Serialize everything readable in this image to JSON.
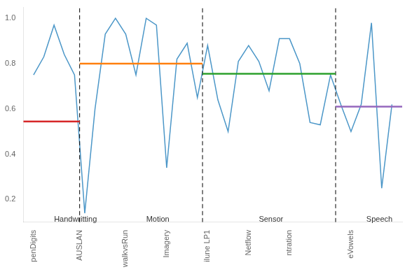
{
  "chart_data": {
    "type": "line",
    "x": [
      0,
      1,
      2,
      3,
      4,
      5,
      6,
      7,
      8,
      9,
      10,
      11,
      12,
      13,
      14,
      15,
      16,
      17,
      18,
      19,
      20,
      21,
      22,
      23,
      24,
      25,
      26,
      27,
      28,
      29,
      30,
      31,
      32,
      33,
      34,
      35
    ],
    "values": [
      0.75,
      0.83,
      0.97,
      0.84,
      0.75,
      0.14,
      0.6,
      0.93,
      1.0,
      0.93,
      0.75,
      1.0,
      0.97,
      0.34,
      0.82,
      0.89,
      0.65,
      0.88,
      0.64,
      0.5,
      0.81,
      0.88,
      0.81,
      0.68,
      0.91,
      0.91,
      0.8,
      0.54,
      0.53,
      0.75,
      0.62,
      0.5,
      0.62,
      0.98,
      0.25,
      0.62
    ],
    "color": "#4C97C8",
    "xlim": [
      -1,
      36
    ],
    "xticks": [
      {
        "value": 0,
        "label": "penDigits"
      },
      {
        "value": 4.5,
        "label": "AUSLAN"
      },
      {
        "value": 9,
        "label": "walkvsRun"
      },
      {
        "value": 13,
        "label": "Imagery"
      },
      {
        "value": 17,
        "label": "ilune LP1"
      },
      {
        "value": 21,
        "label": "Netflow"
      },
      {
        "value": 25,
        "label": "ntration"
      },
      {
        "value": 31,
        "label": "eVowels"
      }
    ],
    "ylim": [
      0.1,
      1.05
    ],
    "yticks": [
      0.2,
      0.4,
      0.6,
      0.8,
      {
        "value": 1.0,
        "label": "1.0"
      }
    ],
    "vlines": [
      {
        "x": 4.5,
        "color": "black",
        "line_style": "dashed"
      },
      {
        "x": 16.5,
        "color": "black",
        "line_style": "dashed"
      },
      {
        "x": 29.5,
        "color": "black",
        "line_style": "dashed"
      }
    ],
    "mean_lines": [
      {
        "xmin": -1,
        "xmax": 4.5,
        "y": 0.545,
        "color": "#d62728"
      },
      {
        "xmin": 4.5,
        "xmax": 16.5,
        "y": 0.8,
        "color": "#ff7f0e"
      },
      {
        "xmin": 16.5,
        "xmax": 29.5,
        "y": 0.755,
        "color": "#2ca02c"
      },
      {
        "xmin": 29.5,
        "xmax": 36,
        "y": 0.61,
        "color": "#9467bd"
      }
    ],
    "annotations": [
      {
        "text": "Handwritting",
        "x": 2.0,
        "y": 0.13
      },
      {
        "text": "Motion",
        "x": 11.0,
        "y": 0.13
      },
      {
        "text": "Sensor",
        "x": 22.0,
        "y": 0.13
      },
      {
        "text": "Speech",
        "x": 32.5,
        "y": 0.13
      }
    ],
    "grid": false
  }
}
